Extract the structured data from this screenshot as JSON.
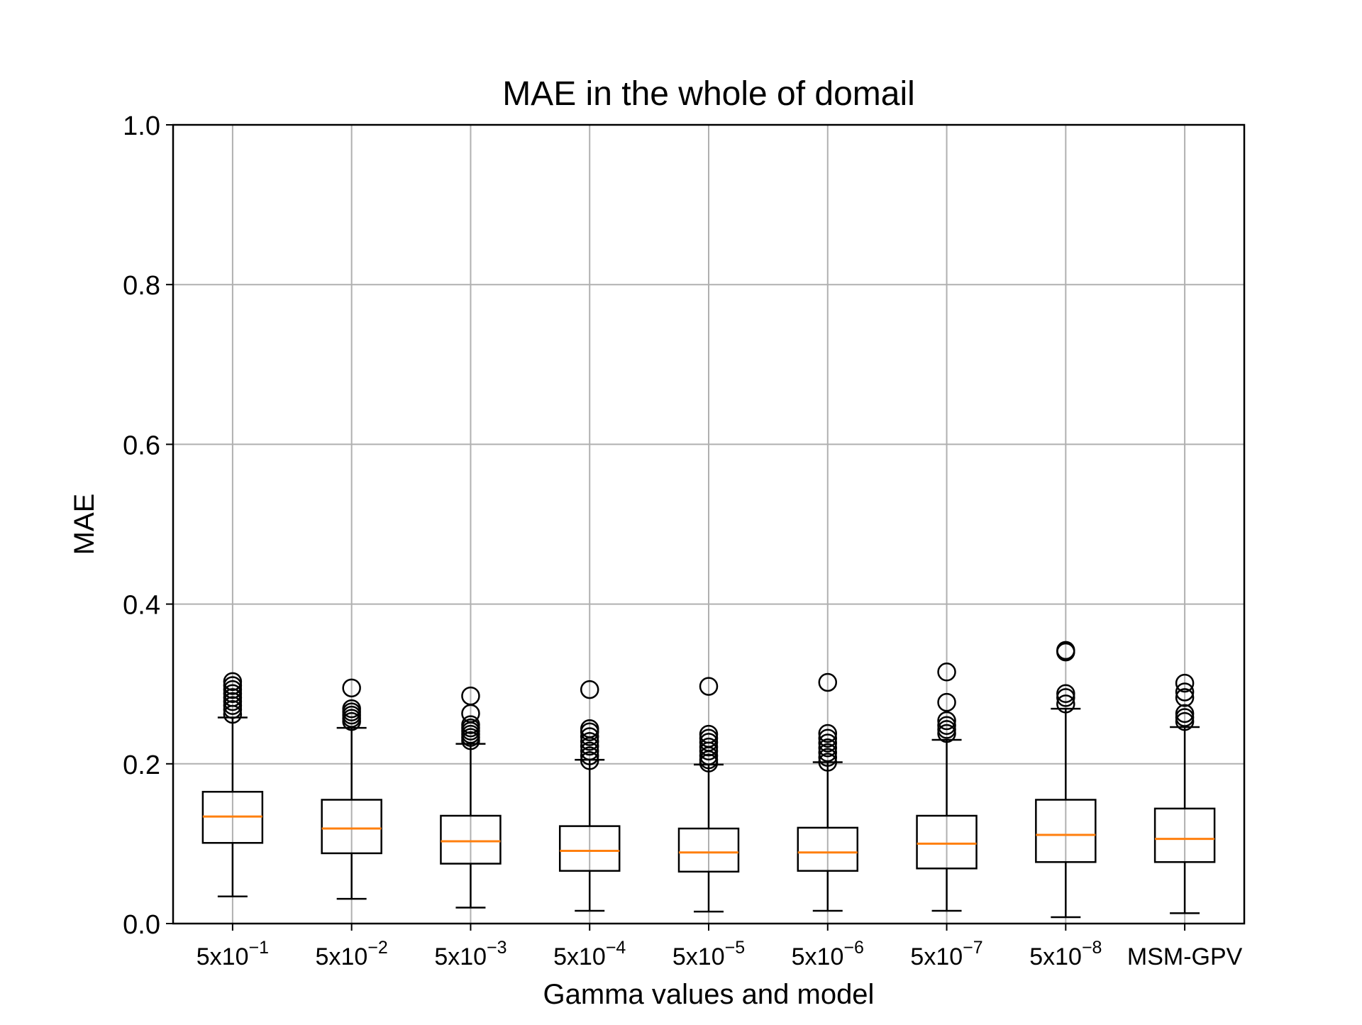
{
  "chart_data": {
    "type": "box",
    "title": "MAE in the whole of domail",
    "xlabel": "Gamma values and model",
    "ylabel": "MAE",
    "ylim": [
      0.0,
      1.0
    ],
    "yticks": [
      "0.0",
      "0.2",
      "0.4",
      "0.6",
      "0.8",
      "1.0"
    ],
    "grid": true,
    "categories": [
      {
        "base": "5x10",
        "exp": "−1"
      },
      {
        "base": "5x10",
        "exp": "−2"
      },
      {
        "base": "5x10",
        "exp": "−3"
      },
      {
        "base": "5x10",
        "exp": "−4"
      },
      {
        "base": "5x10",
        "exp": "−5"
      },
      {
        "base": "5x10",
        "exp": "−6"
      },
      {
        "base": "5x10",
        "exp": "−7"
      },
      {
        "base": "5x10",
        "exp": "−8"
      },
      {
        "base": "MSM-GPV",
        "exp": ""
      }
    ],
    "boxes": [
      {
        "whisker_low": 0.034,
        "q1": 0.101,
        "median": 0.134,
        "q3": 0.165,
        "whisker_high": 0.258,
        "outliers": [
          0.262,
          0.268,
          0.273,
          0.278,
          0.283,
          0.288,
          0.293,
          0.298,
          0.303
        ]
      },
      {
        "whisker_low": 0.031,
        "q1": 0.088,
        "median": 0.119,
        "q3": 0.155,
        "whisker_high": 0.245,
        "outliers": [
          0.253,
          0.257,
          0.261,
          0.265,
          0.269,
          0.295
        ]
      },
      {
        "whisker_low": 0.02,
        "q1": 0.075,
        "median": 0.103,
        "q3": 0.135,
        "whisker_high": 0.225,
        "outliers": [
          0.229,
          0.233,
          0.237,
          0.241,
          0.245,
          0.249,
          0.263,
          0.285
        ]
      },
      {
        "whisker_low": 0.016,
        "q1": 0.066,
        "median": 0.091,
        "q3": 0.122,
        "whisker_high": 0.205,
        "outliers": [
          0.204,
          0.21,
          0.216,
          0.222,
          0.228,
          0.234,
          0.24,
          0.244,
          0.293
        ]
      },
      {
        "whisker_low": 0.015,
        "q1": 0.065,
        "median": 0.089,
        "q3": 0.119,
        "whisker_high": 0.199,
        "outliers": [
          0.201,
          0.205,
          0.21,
          0.216,
          0.221,
          0.227,
          0.232,
          0.237,
          0.297
        ]
      },
      {
        "whisker_low": 0.016,
        "q1": 0.066,
        "median": 0.089,
        "q3": 0.12,
        "whisker_high": 0.202,
        "outliers": [
          0.202,
          0.208,
          0.214,
          0.22,
          0.226,
          0.232,
          0.238,
          0.302
        ]
      },
      {
        "whisker_low": 0.016,
        "q1": 0.069,
        "median": 0.1,
        "q3": 0.135,
        "whisker_high": 0.23,
        "outliers": [
          0.238,
          0.243,
          0.248,
          0.254,
          0.277,
          0.315
        ]
      },
      {
        "whisker_low": 0.008,
        "q1": 0.077,
        "median": 0.111,
        "q3": 0.155,
        "whisker_high": 0.269,
        "outliers": [
          0.275,
          0.283,
          0.288,
          0.34,
          0.342
        ]
      },
      {
        "whisker_low": 0.013,
        "q1": 0.077,
        "median": 0.106,
        "q3": 0.144,
        "whisker_high": 0.246,
        "outliers": [
          0.253,
          0.258,
          0.263,
          0.283,
          0.29,
          0.301
        ]
      }
    ],
    "colors": {
      "box": "#000000",
      "median": "#ff7f0e",
      "grid": "#b0b0b0"
    }
  }
}
